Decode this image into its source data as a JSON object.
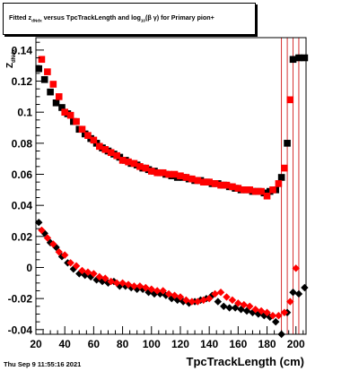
{
  "title": {
    "part1": "Fitted  z",
    "sub1": "dNdx",
    "part2": " versus TpcTrackLength and log",
    "sub2": "10",
    "part3": "(β   γ) for Primary pion+"
  },
  "footer": {
    "date": "Thu Sep  9 11:55:16 2021"
  },
  "chart_data": {
    "type": "scatter",
    "title": "Fitted z_dNdx versus TpcTrackLength and log10(β γ) for Primary pion+",
    "xlabel": "TpcTrackLength (cm)",
    "ylabel": "z_dNdx",
    "xlim": [
      20,
      207
    ],
    "ylim": [
      -0.043,
      0.148
    ],
    "x_ticks": [
      20,
      40,
      60,
      80,
      100,
      120,
      140,
      160,
      180,
      200
    ],
    "y_ticks": [
      -0.04,
      -0.02,
      0,
      0.02,
      0.04,
      0.06,
      0.08,
      0.1,
      0.12,
      0.14
    ],
    "grid": false,
    "series": [
      {
        "marker": "square",
        "color": "#000000",
        "x": [
          22,
          26,
          30,
          34,
          38,
          42,
          46,
          50,
          54,
          58,
          62,
          66,
          70,
          74,
          78,
          82,
          86,
          90,
          94,
          98,
          102,
          106,
          110,
          114,
          118,
          122,
          126,
          130,
          134,
          138,
          142,
          146,
          150,
          154,
          158,
          162,
          166,
          170,
          174,
          178,
          182,
          186,
          190,
          194,
          198,
          202,
          206
        ],
        "y": [
          0.128,
          0.121,
          0.113,
          0.106,
          0.103,
          0.099,
          0.094,
          0.089,
          0.086,
          0.083,
          0.08,
          0.077,
          0.075,
          0.073,
          0.071,
          0.069,
          0.067,
          0.066,
          0.064,
          0.063,
          0.062,
          0.061,
          0.06,
          0.059,
          0.058,
          0.058,
          0.057,
          0.056,
          0.056,
          0.055,
          0.054,
          0.054,
          0.053,
          0.052,
          0.051,
          0.05,
          0.05,
          0.049,
          0.049,
          0.048,
          0.049,
          0.05,
          0.058,
          0.08,
          0.134,
          0.135,
          0.135
        ]
      },
      {
        "marker": "square",
        "color": "#ff0000",
        "x": [
          24,
          28,
          32,
          36,
          40,
          44,
          48,
          52,
          56,
          60,
          64,
          68,
          72,
          76,
          80,
          84,
          88,
          92,
          96,
          100,
          104,
          108,
          112,
          116,
          120,
          124,
          128,
          132,
          136,
          140,
          144,
          148,
          152,
          156,
          160,
          164,
          168,
          172,
          176,
          180,
          184,
          188,
          192,
          196
        ],
        "y": [
          0.134,
          0.126,
          0.118,
          0.11,
          0.1,
          0.098,
          0.094,
          0.089,
          0.085,
          0.082,
          0.078,
          0.076,
          0.074,
          0.072,
          0.069,
          0.068,
          0.067,
          0.065,
          0.064,
          0.062,
          0.061,
          0.061,
          0.06,
          0.06,
          0.059,
          0.058,
          0.057,
          0.056,
          0.055,
          0.055,
          0.054,
          0.053,
          0.053,
          0.052,
          0.051,
          0.05,
          0.05,
          0.049,
          0.049,
          0.046,
          0.05,
          0.054,
          0.064,
          0.108
        ]
      },
      {
        "marker": "diamond",
        "color": "#000000",
        "x": [
          22,
          26,
          30,
          34,
          38,
          42,
          46,
          50,
          54,
          58,
          62,
          66,
          70,
          74,
          78,
          82,
          86,
          90,
          94,
          98,
          102,
          106,
          110,
          114,
          118,
          122,
          126,
          130,
          134,
          138,
          142,
          146,
          150,
          154,
          158,
          162,
          166,
          170,
          174,
          178,
          182,
          186,
          190,
          194,
          198,
          202,
          206
        ],
        "y": [
          0.029,
          0.022,
          0.016,
          0.013,
          0.007,
          0.003,
          -0.001,
          -0.004,
          -0.005,
          -0.006,
          -0.008,
          -0.009,
          -0.01,
          -0.009,
          -0.012,
          -0.012,
          -0.013,
          -0.014,
          -0.014,
          -0.016,
          -0.017,
          -0.017,
          -0.018,
          -0.02,
          -0.021,
          -0.022,
          -0.023,
          -0.022,
          -0.021,
          -0.02,
          -0.018,
          -0.022,
          -0.025,
          -0.026,
          -0.026,
          -0.027,
          -0.028,
          -0.029,
          -0.03,
          -0.031,
          -0.032,
          -0.035,
          -0.043,
          -0.029,
          -0.016,
          -0.017,
          -0.013
        ]
      },
      {
        "marker": "diamond",
        "color": "#ff0000",
        "x": [
          24,
          28,
          32,
          36,
          40,
          44,
          48,
          52,
          56,
          60,
          64,
          68,
          72,
          76,
          80,
          84,
          88,
          92,
          96,
          100,
          104,
          108,
          112,
          116,
          120,
          124,
          128,
          132,
          136,
          140,
          144,
          148,
          152,
          156,
          160,
          164,
          168,
          172,
          176,
          180,
          184,
          188,
          192,
          196,
          200
        ],
        "y": [
          0.024,
          0.019,
          0.015,
          0.01,
          0.008,
          0.003,
          0.001,
          -0.002,
          -0.003,
          -0.004,
          -0.006,
          -0.007,
          -0.009,
          -0.01,
          -0.01,
          -0.011,
          -0.012,
          -0.012,
          -0.013,
          -0.014,
          -0.015,
          -0.015,
          -0.017,
          -0.018,
          -0.019,
          -0.021,
          -0.022,
          -0.022,
          -0.021,
          -0.02,
          -0.017,
          -0.016,
          -0.019,
          -0.021,
          -0.023,
          -0.024,
          -0.025,
          -0.027,
          -0.028,
          -0.029,
          -0.031,
          -0.031,
          -0.029,
          -0.022,
          -0.0005
        ]
      }
    ],
    "error_bar_x": [
      190,
      194,
      198,
      202
    ]
  }
}
